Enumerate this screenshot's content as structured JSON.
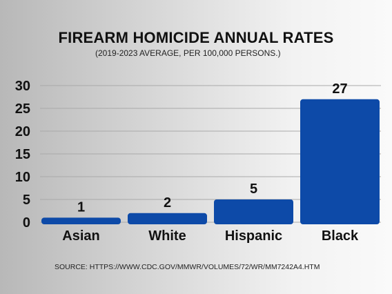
{
  "chart_data": {
    "type": "bar",
    "title": "FIREARM HOMICIDE ANNUAL RATES",
    "subtitle": "(2019-2023 AVERAGE, PER 100,000 PERSONS.)",
    "categories": [
      "Asian",
      "White",
      "Hispanic",
      "Black"
    ],
    "values": [
      1,
      2,
      5,
      27
    ],
    "data_labels": [
      "1",
      "2",
      "5",
      "27"
    ],
    "y_ticks": [
      "0",
      "5",
      "10",
      "15",
      "20",
      "25",
      "30"
    ],
    "ylim": [
      0,
      30
    ],
    "grid": true,
    "bar_color": "#0d4aa8",
    "source": "SOURCE: HTTPS://WWW.CDC.GOV/MMWR/VOLUMES/72/WR/MM7242A4.HTM"
  }
}
